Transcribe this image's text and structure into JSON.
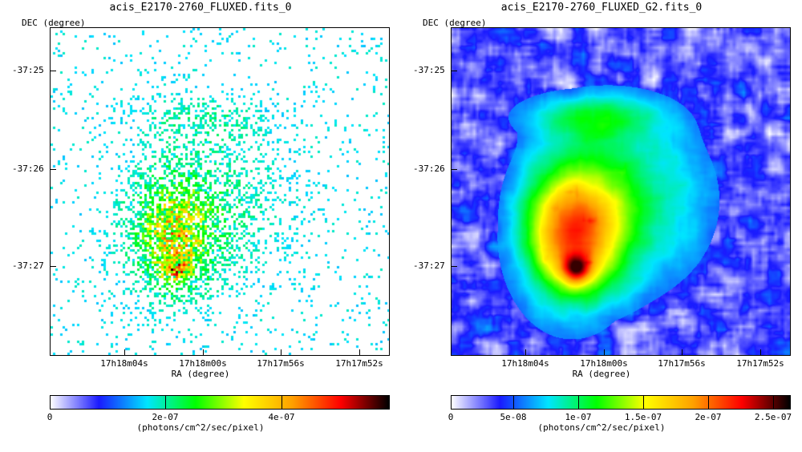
{
  "panels": [
    {
      "title": "acis_E2170-2760_FLUXED.fits_0",
      "dec_label": "DEC (degree)",
      "ra_label": "RA (degree)",
      "y_ticks": [
        "-37:25",
        "-37:26",
        "-37:27"
      ],
      "x_ticks": [
        "17h18m04s",
        "17h18m00s",
        "17h17m56s",
        "17h17m52s"
      ],
      "colorbar_ticks": [
        "0",
        "2e-07",
        "4e-07"
      ],
      "colorbar_units": "(photons/cm^2/sec/pixel)",
      "image_style": "raw-pixels"
    },
    {
      "title": "acis_E2170-2760_FLUXED_G2.fits_0",
      "dec_label": "DEC (degree)",
      "ra_label": "RA (degree)",
      "y_ticks": [
        "-37:25",
        "-37:26",
        "-37:27"
      ],
      "x_ticks": [
        "17h18m04s",
        "17h18m00s",
        "17h17m56s",
        "17h17m52s"
      ],
      "colorbar_ticks": [
        "0",
        "5e-08",
        "1e-07",
        "1.5e-07",
        "2e-07",
        "2.5e-07"
      ],
      "colorbar_units": "(photons/cm^2/sec/pixel)",
      "image_style": "smoothed"
    }
  ],
  "colormap": [
    "#ffffff",
    "#1a1aff",
    "#00e5ff",
    "#00ff00",
    "#ffff00",
    "#ffa000",
    "#ff0000",
    "#000000"
  ]
}
